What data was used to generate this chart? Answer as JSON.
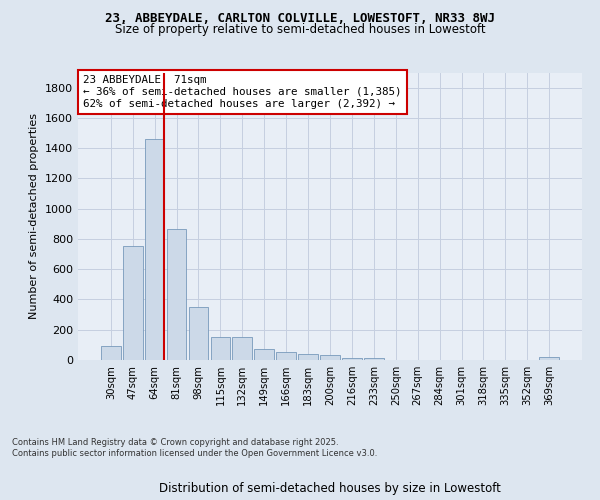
{
  "title_line1": "23, ABBEYDALE, CARLTON COLVILLE, LOWESTOFT, NR33 8WJ",
  "title_line2": "Size of property relative to semi-detached houses in Lowestoft",
  "xlabel": "Distribution of semi-detached houses by size in Lowestoft",
  "ylabel": "Number of semi-detached properties",
  "categories": [
    "30sqm",
    "47sqm",
    "64sqm",
    "81sqm",
    "98sqm",
    "115sqm",
    "132sqm",
    "149sqm",
    "166sqm",
    "183sqm",
    "200sqm",
    "216sqm",
    "233sqm",
    "250sqm",
    "267sqm",
    "284sqm",
    "301sqm",
    "318sqm",
    "335sqm",
    "352sqm",
    "369sqm"
  ],
  "values": [
    90,
    755,
    1460,
    865,
    350,
    155,
    155,
    75,
    55,
    40,
    30,
    15,
    15,
    0,
    0,
    0,
    0,
    0,
    0,
    0,
    20
  ],
  "bar_color": "#ccd9e8",
  "bar_edge_color": "#7799bb",
  "grid_color": "#c5cfe0",
  "vline_color": "#cc0000",
  "annotation_text": "23 ABBEYDALE: 71sqm\n← 36% of semi-detached houses are smaller (1,385)\n62% of semi-detached houses are larger (2,392) →",
  "annotation_box_color": "#ffffff",
  "annotation_box_edge": "#cc0000",
  "ylim": [
    0,
    1900
  ],
  "yticks": [
    0,
    200,
    400,
    600,
    800,
    1000,
    1200,
    1400,
    1600,
    1800
  ],
  "footer_text": "Contains HM Land Registry data © Crown copyright and database right 2025.\nContains public sector information licensed under the Open Government Licence v3.0.",
  "background_color": "#dde6f0",
  "plot_background_color": "#e8eef6"
}
